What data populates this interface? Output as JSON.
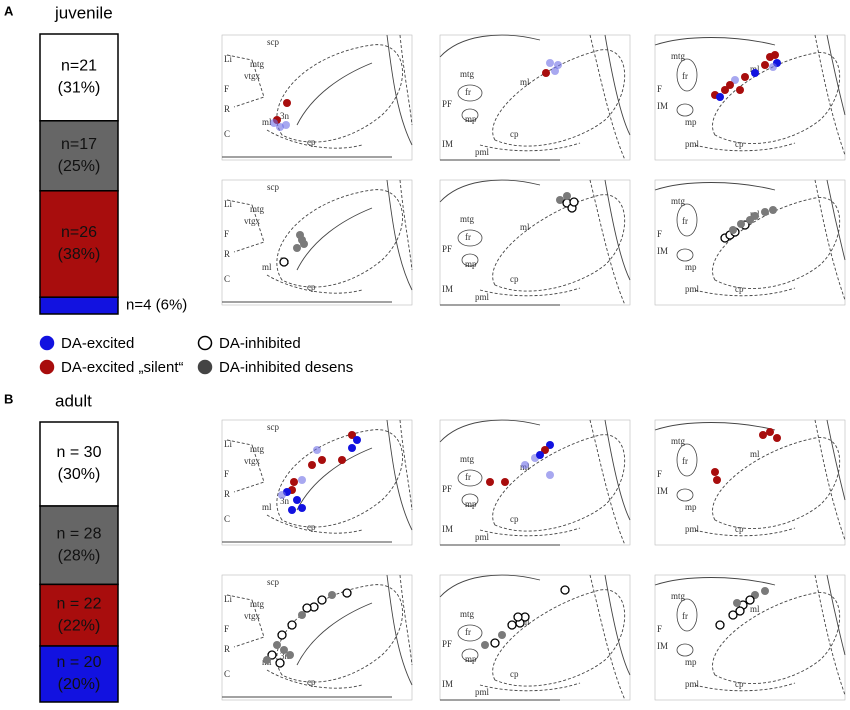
{
  "panels": [
    {
      "letter": "A",
      "group": "juvenile",
      "bar": [
        {
          "n": "n=21",
          "pct_label": "(31%)",
          "percent": 31,
          "color": "#ffffff"
        },
        {
          "n": "n=17",
          "pct_label": "(25%)",
          "percent": 25,
          "color": "#666666"
        },
        {
          "n": "n=26",
          "pct_label": "(38%)",
          "percent": 38,
          "color": "#a80d0d"
        },
        {
          "n": "n=4 (6%)",
          "percent": 6,
          "color": "#1212e0"
        }
      ]
    },
    {
      "letter": "B",
      "group": "adult",
      "bar": [
        {
          "n": "n  = 30",
          "pct_label": "(30%)",
          "percent": 30,
          "color": "#ffffff"
        },
        {
          "n": "n  = 28",
          "pct_label": "(28%)",
          "percent": 28,
          "color": "#666666"
        },
        {
          "n": "n  = 22",
          "pct_label": "(22%)",
          "percent": 22,
          "color": "#a80d0d"
        },
        {
          "n": "n  = 20",
          "pct_label": "(20%)",
          "percent": 20,
          "color": "#1212e0"
        }
      ]
    }
  ],
  "legend": [
    {
      "label": "DA-excited",
      "fill": "#1212e0",
      "stroke": "#1212e0"
    },
    {
      "label": "DA-inhibited",
      "fill": "#ffffff",
      "stroke": "#000000"
    },
    {
      "label": "DA-excited „silent“",
      "fill": "#a80d0d",
      "stroke": "#a80d0d"
    },
    {
      "label": "DA-inhibited desens",
      "fill": "#444444",
      "stroke": "#444444"
    }
  ],
  "atlas_labels": [
    [
      "scp",
      "Li",
      "mtg",
      "vtgx",
      "F",
      "R",
      "C",
      "ml",
      "3n",
      "cp"
    ],
    [
      "mtg",
      "ml",
      "fr",
      "PF",
      "mp",
      "cp",
      "IM",
      "pml"
    ],
    [
      "mtg",
      "fr",
      "ml",
      "F",
      "IM",
      "mp",
      "cp",
      "pml"
    ]
  ]
}
